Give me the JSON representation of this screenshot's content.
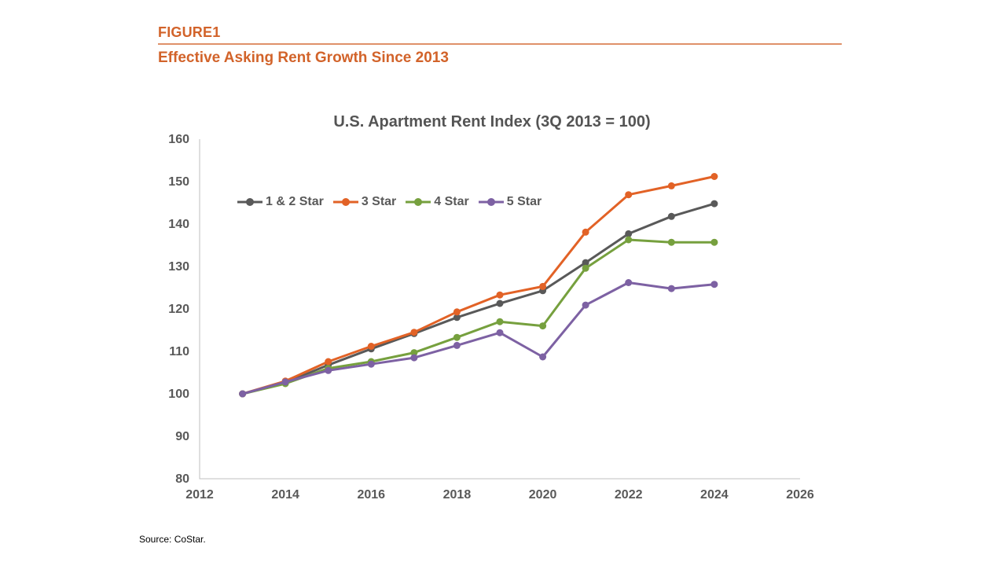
{
  "header": {
    "figure_label": "FIGURE1",
    "title": "Effective Asking Rent Growth Since 2013",
    "accent_color": "#D2632A"
  },
  "source": "Source: CoStar.",
  "chart_data": {
    "type": "line",
    "title": "U.S. Apartment Rent Index (3Q 2013 = 100)",
    "x": [
      2013,
      2014,
      2015,
      2016,
      2017,
      2018,
      2019,
      2020,
      2021,
      2022,
      2023,
      2024
    ],
    "series": [
      {
        "name": "1 & 2 Star",
        "color": "#595959",
        "values": [
          100,
          102.6,
          106.8,
          110.6,
          114.2,
          118.0,
          121.3,
          124.3,
          130.9,
          137.7,
          141.8,
          144.8
        ]
      },
      {
        "name": "3 Star",
        "color": "#E26226",
        "values": [
          100,
          103.0,
          107.6,
          111.2,
          114.5,
          119.3,
          123.3,
          125.3,
          138.1,
          146.9,
          149.0,
          151.2
        ]
      },
      {
        "name": "4 Star",
        "color": "#76A03E",
        "values": [
          100,
          102.4,
          106.0,
          107.6,
          109.7,
          113.3,
          117.0,
          116.0,
          129.6,
          136.3,
          135.7,
          135.7
        ]
      },
      {
        "name": "5 Star",
        "color": "#7D61A3",
        "values": [
          100,
          102.8,
          105.5,
          107.0,
          108.5,
          111.4,
          114.4,
          108.7,
          120.9,
          126.2,
          124.8,
          125.8
        ]
      }
    ],
    "xlim": [
      2012,
      2026
    ],
    "ylim": [
      80,
      160
    ],
    "x_ticks": [
      2012,
      2014,
      2016,
      2018,
      2020,
      2022,
      2024,
      2026
    ],
    "y_ticks": [
      80,
      90,
      100,
      110,
      120,
      130,
      140,
      150,
      160
    ],
    "grid": false,
    "legend_position": "inside-top-left",
    "axis_color": "#BFBFBF",
    "label_color": "#595959",
    "title_color": "#545454",
    "marker": "circle",
    "line_width": 3
  }
}
